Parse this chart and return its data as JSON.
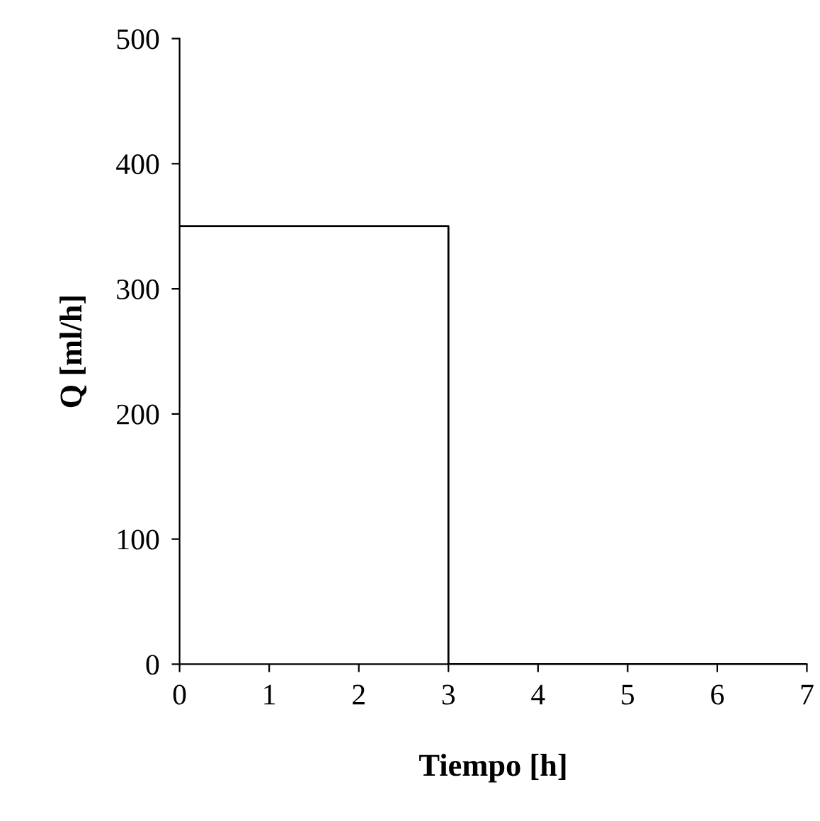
{
  "chart_data": {
    "type": "step",
    "xlabel": "Tiempo [h]",
    "ylabel": "Q [ml/h]",
    "x": [
      0,
      3,
      7
    ],
    "series": [
      {
        "color": "#000000",
        "values": [
          350,
          0,
          0
        ]
      }
    ],
    "xlim": [
      0,
      7
    ],
    "xticks": [
      0,
      1,
      2,
      3,
      4,
      5,
      6,
      7
    ],
    "ylim": [
      0,
      500
    ],
    "yticks": [
      0,
      100,
      200,
      300,
      400,
      500
    ],
    "grid": false,
    "legend": false,
    "marker": "none",
    "line_style": "solid"
  }
}
